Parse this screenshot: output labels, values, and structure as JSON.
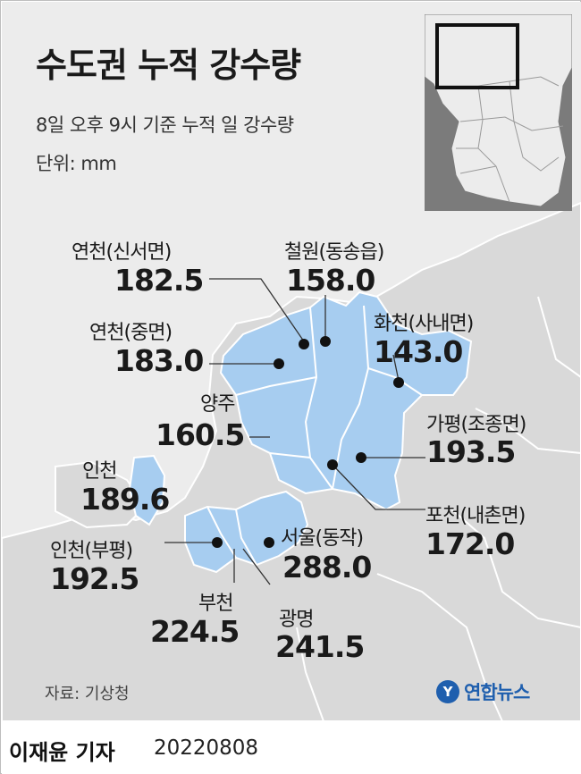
{
  "title": "수도권 누적 강수량",
  "subtitle": "8일 오후 9시 기준 누적 일 강수량",
  "unit": "단위: mm",
  "stations": [
    {
      "name": "연천(신서면)",
      "value": "182.5"
    },
    {
      "name": "철원(동송읍)",
      "value": "158.0"
    },
    {
      "name": "연천(중면)",
      "value": "183.0"
    },
    {
      "name": "화천(사내면)",
      "value": "143.0"
    },
    {
      "name": "양주",
      "value": "160.5"
    },
    {
      "name": "가평(조종면)",
      "value": "193.5"
    },
    {
      "name": "인천",
      "value": "189.6"
    },
    {
      "name": "포천(내촌면)",
      "value": "172.0"
    },
    {
      "name": "인천(부평)",
      "value": "192.5"
    },
    {
      "name": "서울(동작)",
      "value": "288.0"
    },
    {
      "name": "부천",
      "value": "224.5"
    },
    {
      "name": "광명",
      "value": "241.5"
    }
  ],
  "source": "자료: 기상청",
  "logo": {
    "mark": "Y",
    "text": "연합뉴스"
  },
  "footer": {
    "reporter": "이재윤 기자",
    "date": "20220808"
  },
  "colors": {
    "highlight_region": "#a7cdf0",
    "land": "#d9d9d9",
    "sea": "#ececec",
    "inset_background": "#7b7b7b",
    "logo": "#1f5fae"
  }
}
